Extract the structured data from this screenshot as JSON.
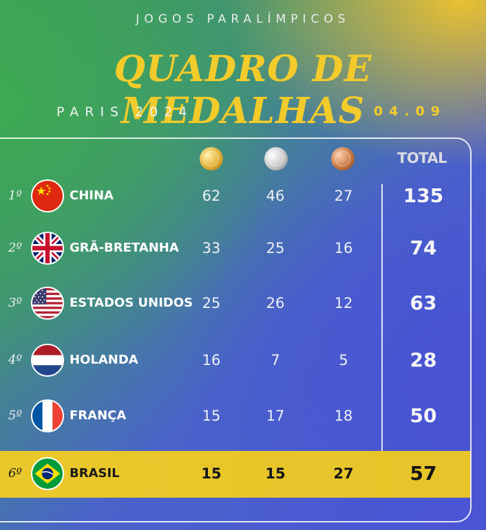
{
  "header": {
    "top_label": "JOGOS PARALÍMPICOS",
    "title": "QUADRO DE MEDALHAS",
    "subtitle": "PARIS 2024",
    "date": "04.09"
  },
  "table": {
    "total_label": "TOTAL",
    "medal_icons": [
      "gold-medal-icon",
      "silver-medal-icon",
      "bronze-medal-icon"
    ],
    "rows": [
      {
        "rank": "1º",
        "country": "CHINA",
        "flag": "china-flag-icon",
        "gold": "62",
        "silver": "46",
        "bronze": "27",
        "total": "135"
      },
      {
        "rank": "2º",
        "country": "GRÃ-BRETANHA",
        "flag": "uk-flag-icon",
        "gold": "33",
        "silver": "25",
        "bronze": "16",
        "total": "74"
      },
      {
        "rank": "3º",
        "country": "ESTADOS UNIDOS",
        "flag": "usa-flag-icon",
        "gold": "25",
        "silver": "26",
        "bronze": "12",
        "total": "63"
      },
      {
        "rank": "4º",
        "country": "HOLANDA",
        "flag": "netherlands-flag-icon",
        "gold": "16",
        "silver": "7",
        "bronze": "5",
        "total": "28"
      },
      {
        "rank": "5º",
        "country": "FRANÇA",
        "flag": "france-flag-icon",
        "gold": "15",
        "silver": "17",
        "bronze": "18",
        "total": "50"
      },
      {
        "rank": "6º",
        "country": "BRASIL",
        "flag": "brazil-flag-icon",
        "gold": "15",
        "silver": "15",
        "bronze": "27",
        "total": "57",
        "highlighted": true
      }
    ]
  },
  "colors": {
    "accent_yellow": "#f3cb2b",
    "highlight_band": "#e8c52a",
    "green": "#3a9a55",
    "blue": "#4a55d6"
  }
}
